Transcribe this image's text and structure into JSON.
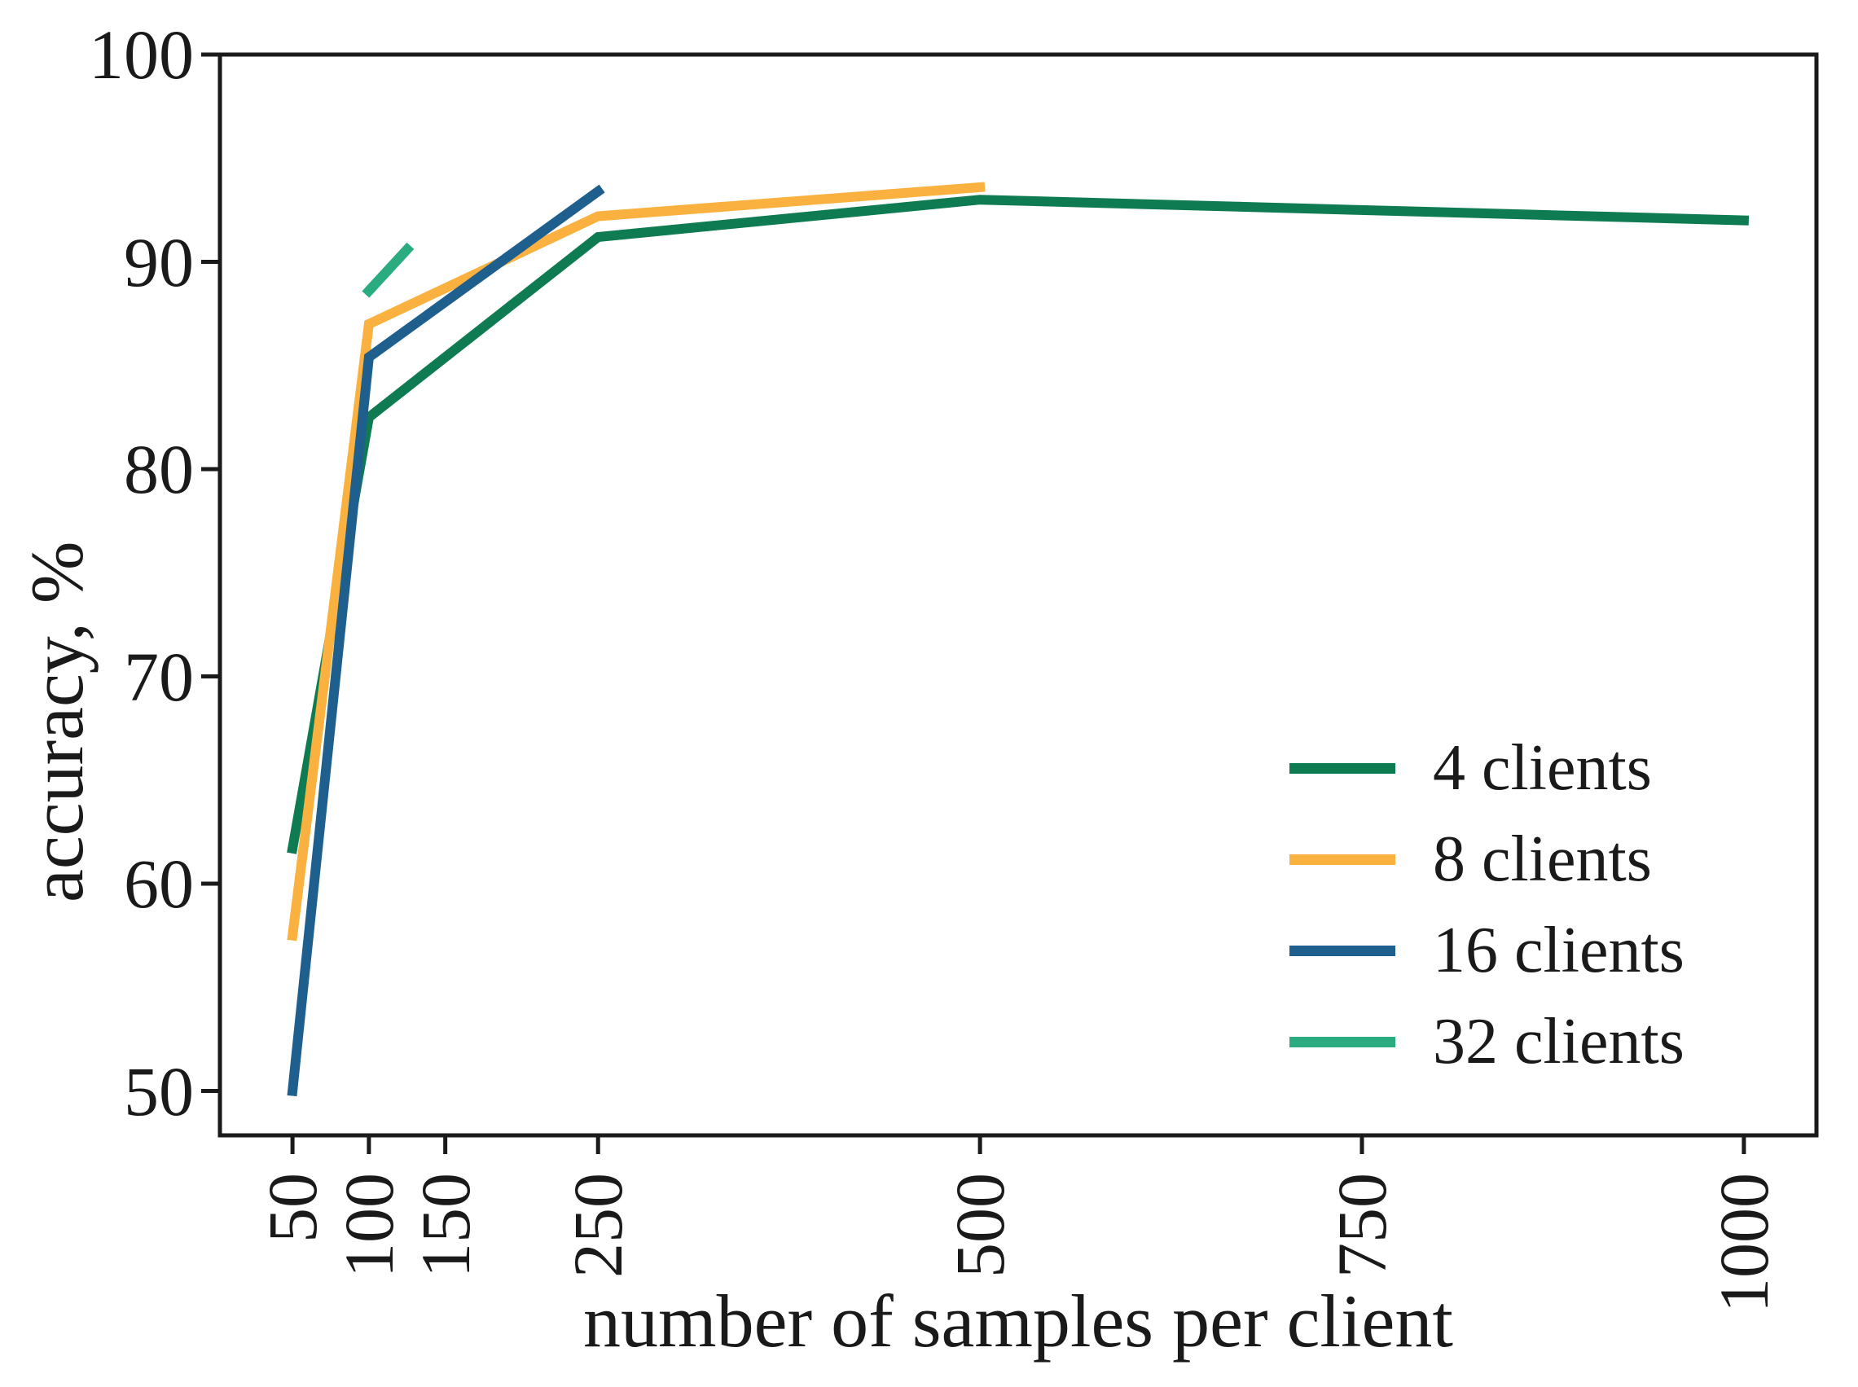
{
  "figure": {
    "background": "#ffffff",
    "text_color": "#1a1a1a"
  },
  "chart_data": {
    "type": "line",
    "title": "",
    "xlabel": "number of samples per client",
    "ylabel": "accuracy, %",
    "xlim": [
      2.5,
      1047.5
    ],
    "ylim": [
      47.86,
      100
    ],
    "xticks": [
      50,
      100,
      150,
      250,
      500,
      750,
      1000
    ],
    "yticks": [
      50,
      60,
      70,
      80,
      90,
      100
    ],
    "grid": false,
    "legend_position": "lower right",
    "line_width": 12,
    "series": [
      {
        "name": "4 clients",
        "color": "#0f7b52",
        "x": [
          50,
          100,
          250,
          500,
          1000
        ],
        "y": [
          61.7,
          82.5,
          91.2,
          93.0,
          92.0
        ]
      },
      {
        "name": "8 clients",
        "color": "#fab13f",
        "x": [
          50,
          100,
          250,
          500
        ],
        "y": [
          57.5,
          87.0,
          92.2,
          93.6
        ]
      },
      {
        "name": "16 clients",
        "color": "#1f5f8e",
        "x": [
          50,
          100,
          250
        ],
        "y": [
          50.0,
          85.4,
          93.4
        ]
      },
      {
        "name": "32 clients",
        "color": "#2bac80",
        "x": [
          100,
          125
        ],
        "y": [
          88.6,
          90.6
        ]
      }
    ]
  },
  "legend": {
    "items": [
      {
        "label": "4 clients",
        "color": "#0f7b52"
      },
      {
        "label": "8 clients",
        "color": "#fab13f"
      },
      {
        "label": "16 clients",
        "color": "#1f5f8e"
      },
      {
        "label": "32 clients",
        "color": "#2bac80"
      }
    ]
  }
}
